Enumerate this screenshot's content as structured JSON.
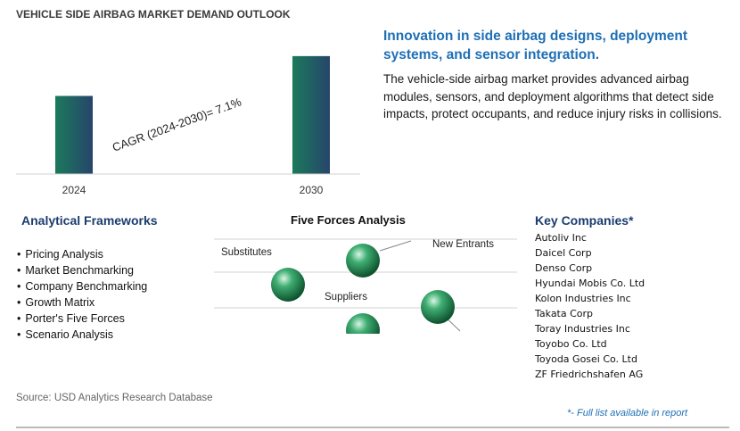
{
  "page": {
    "title": "VEHICLE SIDE AIRBAG MARKET DEMAND OUTLOOK",
    "headline": "Innovation in side airbag designs, deployment systems, and sensor integration.",
    "description": "The vehicle-side airbag market provides advanced airbag modules, sensors, and deployment algorithms that detect side impacts, protect occupants, and reduce injury risks in collisions.",
    "source": "Source: USD Analytics Research Database",
    "footnote": "*- Full list available in report"
  },
  "chart_data": {
    "type": "bar",
    "categories": [
      "2024",
      "2030"
    ],
    "values": [
      1,
      1.51
    ],
    "ylim": [
      0,
      1.6
    ],
    "annotation": "CAGR (2024-2030)=   7.1%",
    "grid": false,
    "legend": "none",
    "bar_gradient": [
      "#1b7a5b",
      "#26456b"
    ]
  },
  "frameworks": {
    "title": "Analytical Frameworks",
    "items": [
      "Pricing Analysis",
      "Market Benchmarking",
      "Company Benchmarking",
      "Growth Matrix",
      "Porter's Five Forces",
      "Scenario Analysis"
    ]
  },
  "five_forces": {
    "title": "Five Forces Analysis",
    "labels": {
      "substitutes": "Substitutes",
      "new_entrants": "New Entrants",
      "suppliers": "Suppliers"
    }
  },
  "companies": {
    "title": "Key Companies*",
    "items": [
      "Autoliv Inc",
      "Daicel Corp",
      "Denso Corp",
      "Hyundai Mobis Co. Ltd",
      "Kolon Industries Inc",
      "Takata Corp",
      "Toray Industries Inc",
      "Toyobo Co. Ltd",
      "Toyoda Gosei Co. Ltd",
      "ZF Friedrichshafen AG"
    ]
  }
}
